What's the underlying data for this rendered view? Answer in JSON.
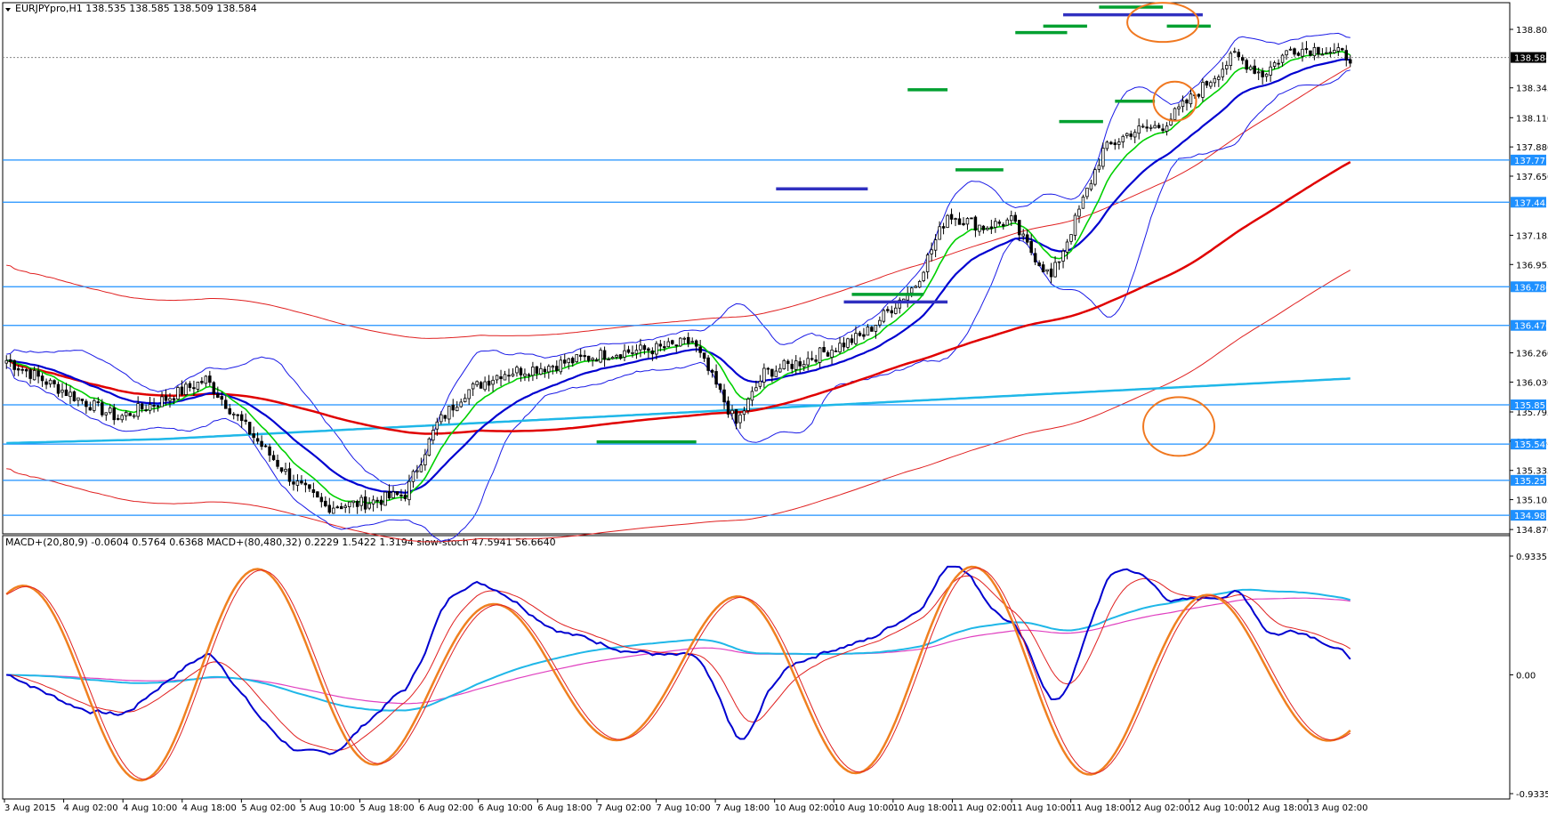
{
  "header": {
    "symbol_text": "EURJPYpro,H1  138.535 138.585 138.509 138.584",
    "indicator_text": "MACD+(20,80,9) -0.0604 0.5764 0.6368   MACD+(80,480,32) 0.2229 1.5422 1.3194   slow-stoch 47.5941 56.6640"
  },
  "colors": {
    "hline": "#1e90ff",
    "label_bg": "#1e90ff",
    "current_bg": "#000000",
    "sma_red": "#e00000",
    "sma_cyan": "#1fb7e8",
    "ema_blue": "#0000d0",
    "ema_green": "#00d000",
    "bollinger_blue": "#1a1ae6",
    "envelope_red": "#e02020",
    "marker_green": "#00a030",
    "marker_blue": "#3030c0",
    "circle_orange": "#f07820"
  },
  "chart_data": [
    {
      "type": "candlestick",
      "symbol": "EURJPYpro",
      "timeframe": "H1",
      "last_price": "138.584",
      "x_tick_labels": [
        "3 Aug 2015",
        "4 Aug 02:00",
        "4 Aug 10:00",
        "4 Aug 18:00",
        "5 Aug 02:00",
        "5 Aug 10:00",
        "5 Aug 18:00",
        "6 Aug 02:00",
        "6 Aug 10:00",
        "6 Aug 18:00",
        "7 Aug 02:00",
        "7 Aug 10:00",
        "7 Aug 18:00",
        "10 Aug 02:00",
        "10 Aug 10:00",
        "10 Aug 18:00",
        "11 Aug 02:00",
        "11 Aug 10:00",
        "11 Aug 18:00",
        "12 Aug 02:00",
        "12 Aug 10:00",
        "12 Aug 18:00",
        "13 Aug 02:00"
      ],
      "y_tick_labels": [
        "138.805",
        "138.345",
        "138.110",
        "137.880",
        "137.650",
        "137.185",
        "136.955",
        "136.260",
        "136.030",
        "135.795",
        "135.565",
        "135.335",
        "135.105",
        "134.870"
      ],
      "ylim": [
        134.85,
        138.98
      ],
      "horizontal_levels": [
        "137.777",
        "137.445",
        "136.780",
        "136.476",
        "135.851",
        "135.542",
        "135.257",
        "134.982"
      ],
      "price_path": [
        [
          0,
          136.2
        ],
        [
          18,
          135.9
        ],
        [
          28,
          135.75
        ],
        [
          40,
          135.9
        ],
        [
          50,
          136.05
        ],
        [
          62,
          135.6
        ],
        [
          72,
          135.25
        ],
        [
          80,
          135.05
        ],
        [
          90,
          135.08
        ],
        [
          100,
          135.15
        ],
        [
          108,
          135.7
        ],
        [
          115,
          135.95
        ],
        [
          124,
          136.1
        ],
        [
          135,
          136.15
        ],
        [
          150,
          136.25
        ],
        [
          165,
          136.3
        ],
        [
          172,
          136.35
        ],
        [
          178,
          136.0
        ],
        [
          183,
          135.7
        ],
        [
          190,
          136.1
        ],
        [
          200,
          136.2
        ],
        [
          215,
          136.4
        ],
        [
          228,
          136.8
        ],
        [
          236,
          137.35
        ],
        [
          245,
          137.25
        ],
        [
          252,
          137.3
        ],
        [
          256,
          137.1
        ],
        [
          262,
          136.85
        ],
        [
          268,
          137.3
        ],
        [
          275,
          137.85
        ],
        [
          282,
          138.0
        ],
        [
          290,
          138.05
        ],
        [
          300,
          138.35
        ],
        [
          308,
          138.6
        ],
        [
          315,
          138.45
        ],
        [
          322,
          138.65
        ],
        [
          330,
          138.65
        ],
        [
          338,
          138.58
        ]
      ],
      "candle_count": 338
    },
    {
      "type": "line",
      "indicator_label": "MACD+(20,80,9) -0.0604 0.5764 0.6368   MACD+(80,480,32) 0.2229 1.5422 1.3194   slow-stoch 47.5941 56.6640",
      "y_tick_labels": [
        "0.9335",
        "0.00",
        "-0.9335"
      ],
      "ylim": [
        -0.9335,
        0.9335
      ]
    }
  ]
}
